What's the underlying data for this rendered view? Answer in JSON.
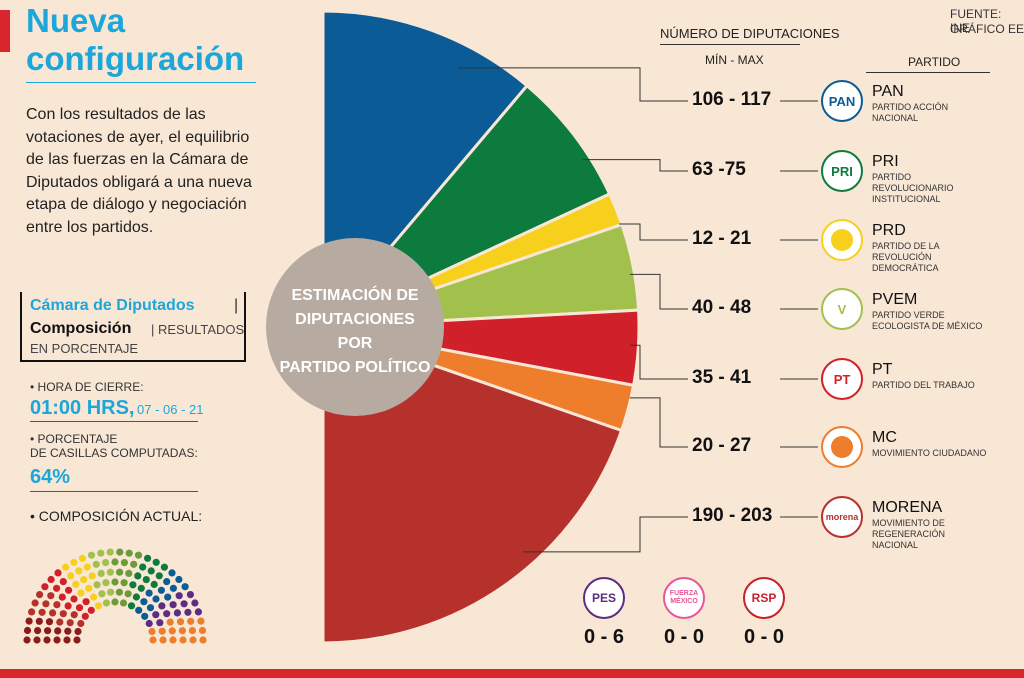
{
  "header": {
    "title_line1": "Nueva",
    "title_line2": "configuración",
    "intro": "Con los resultados de las votaciones de ayer, el equilibrio de las fuerzas en la Cámara de Diputados obligará a una nueva etapa de diálogo y negociación entre los partidos."
  },
  "source": {
    "line1": "FUENTE: INE",
    "line2": "GRÁFICO EE"
  },
  "info_box": {
    "line1": "Cámara de Diputados",
    "sep": "|",
    "line2": "Composición",
    "line2b": "| RESULTADOS",
    "line3": "EN PORCENTAJE"
  },
  "stats": {
    "closing_label": "• HORA DE CIERRE:",
    "closing_time": "01:00 HRS,",
    "closing_date": "07 - 06 - 21",
    "percent_label_1": "• PORCENTAJE",
    "percent_label_2": "DE CASILLAS COMPUTADAS:",
    "percent_value": "64%",
    "current_label": "• COMPOSICIÓN ACTUAL:"
  },
  "chart_data": {
    "type": "pie",
    "title": "ESTIMACIÓN DE DIPUTACIONES POR PARTIDO POLÍTICO",
    "center_text": [
      "ESTIMACIÓN DE",
      "DIPUTACIONES POR",
      "PARTIDO POLÍTICO"
    ],
    "range_header": "NÚMERO DE DIPUTACIONES",
    "range_subheader": "MÍN - MAX",
    "party_header": "PARTIDO",
    "colors": {
      "background": "#f9e7d6",
      "center": "#b7aba1",
      "accent": "#1ca6d9",
      "bar": "#d8262c"
    },
    "parties": [
      {
        "abbr": "PAN",
        "full": "PARTIDO ACCIÓN NACIONAL",
        "range": "106 - 117",
        "min": 106,
        "max": 117,
        "color": "#0b5b97",
        "logo_text": "PAN"
      },
      {
        "abbr": "PRI",
        "full": "PARTIDO REVOLUCIONARIO INSTITUCIONAL",
        "range": "63 -75",
        "min": 63,
        "max": 75,
        "color": "#0d7b3d",
        "logo_text": "PRI"
      },
      {
        "abbr": "PRD",
        "full": "PARTIDO DE LA REVOLUCIÓN DEMOCRÁTICA",
        "range": "12 - 21",
        "min": 12,
        "max": 21,
        "color": "#f7cf1d",
        "logo_text": ""
      },
      {
        "abbr": "PVEM",
        "full": "PARTIDO VERDE ECOLOGISTA DE MÉXICO",
        "range": "40 - 48",
        "min": 40,
        "max": 48,
        "color": "#a2c04c",
        "logo_text": "V"
      },
      {
        "abbr": "PT",
        "full": "PARTIDO DEL TRABAJO",
        "range": "35 - 41",
        "min": 35,
        "max": 41,
        "color": "#d0212a",
        "logo_text": "PT"
      },
      {
        "abbr": "MC",
        "full": "MOVIMIENTO CIUDADANO",
        "range": "20 - 27",
        "min": 20,
        "max": 27,
        "color": "#ee7d2c",
        "logo_text": ""
      },
      {
        "abbr": "MORENA",
        "full": "MOVIMIENTO DE REGENERACIÓN NACIONAL",
        "range": "190 - 203",
        "min": 190,
        "max": 203,
        "color": "#b7312c",
        "logo_text": "morena"
      }
    ],
    "minor_parties": [
      {
        "logo_text": "PES",
        "range": "0 - 6",
        "color": "#5c2d82"
      },
      {
        "logo_text": "FUERZA MÉXICO",
        "range": "0 - 0",
        "color": "#e9559a"
      },
      {
        "logo_text": "RSP",
        "range": "0 - 0",
        "color": "#c8202a"
      }
    ],
    "composition_colors": [
      "#8b1c1c",
      "#b7312c",
      "#d0212a",
      "#f7cf1d",
      "#a2c04c",
      "#6e9b3a",
      "#0d7b3d",
      "#0b5b97",
      "#5c2d82",
      "#ee7d2c"
    ]
  }
}
